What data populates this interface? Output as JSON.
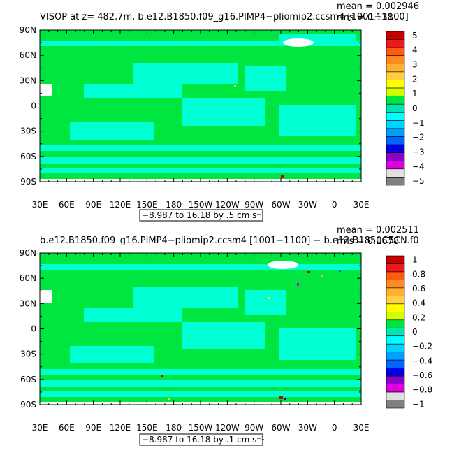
{
  "chart_data": [
    {
      "type": "heatmap",
      "title": "VISOP at z= 482.7m, b.e12.B1850.f09_g16.PIMP4−pliomip2.ccsm4 [1001−1100]",
      "stats": {
        "mean": "mean = 0.002946",
        "rms": "rms = 0.138"
      },
      "range_label": "−8.987 to 16.18 by .5 cm s⁻¹",
      "y_ticks": [
        "90N",
        "60N",
        "30N",
        "0",
        "30S",
        "60S",
        "90S"
      ],
      "x_ticks": [
        "30E",
        "60E",
        "90E",
        "120E",
        "150E",
        "180",
        "150W",
        "120W",
        "90W",
        "60W",
        "30W",
        "0",
        "30E"
      ],
      "colorbar": {
        "labels": [
          "5",
          "4",
          "3",
          "2",
          "1",
          "0",
          "−1",
          "−2",
          "−3",
          "−4",
          "−5"
        ],
        "colors": [
          "#c80000",
          "#ee1a1a",
          "#ff5a12",
          "#ff8a1e",
          "#ffb030",
          "#ffd040",
          "#ffff00",
          "#d2ff00",
          "#00e640",
          "#00e6b0",
          "#00ffff",
          "#00d2ff",
          "#00a0ff",
          "#0064ff",
          "#0000e6",
          "#8c00c8",
          "#dc00dc",
          "#e0e0e0",
          "#808080"
        ]
      },
      "fill": {
        "ocean_main": "#00e640",
        "ocean_alt": "#00ffd2",
        "masked": "#ffffff"
      }
    },
    {
      "type": "heatmap",
      "title": "b.e12.B1850.f09_g16.PIMP4−pliomip2.ccsm4 [1001−1100] − b.e12.B1850C5CN.f0",
      "stats": {
        "mean": "mean = 0.002511",
        "rms": "rms = 0.1678"
      },
      "range_label": "−8.987 to 16.18 by .1 cm s⁻¹",
      "y_ticks": [
        "90N",
        "60N",
        "30N",
        "0",
        "30S",
        "60S",
        "90S"
      ],
      "x_ticks": [
        "30E",
        "60E",
        "90E",
        "120E",
        "150E",
        "180",
        "150W",
        "120W",
        "90W",
        "60W",
        "30W",
        "0",
        "30E"
      ],
      "colorbar": {
        "labels": [
          "1",
          "0.8",
          "0.6",
          "0.4",
          "0.2",
          "0",
          "−0.2",
          "−0.4",
          "−0.6",
          "−0.8",
          "−1"
        ],
        "colors": [
          "#c80000",
          "#ee1a1a",
          "#ff5a12",
          "#ff8a1e",
          "#ffb030",
          "#ffd040",
          "#ffff00",
          "#d2ff00",
          "#00e640",
          "#00e6b0",
          "#00ffff",
          "#00d2ff",
          "#00a0ff",
          "#0064ff",
          "#0000e6",
          "#8c00c8",
          "#dc00dc",
          "#e0e0e0",
          "#808080"
        ]
      },
      "fill": {
        "ocean_main": "#00e640",
        "ocean_alt": "#00ffd2",
        "masked": "#ffffff"
      }
    }
  ]
}
